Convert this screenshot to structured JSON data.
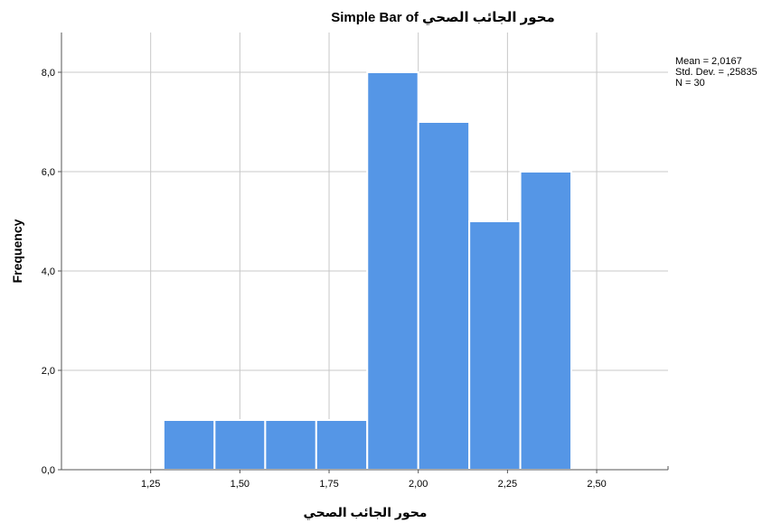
{
  "chart_data": {
    "type": "bar",
    "title": "Simple Bar of محور الجائب الصحي",
    "xlabel": "محور الجائب الصحي",
    "ylabel": "Frequency",
    "xlim": [
      1.0,
      2.7
    ],
    "ylim": [
      0,
      8.8
    ],
    "xticks": [
      1.25,
      1.5,
      1.75,
      2.0,
      2.25,
      2.5
    ],
    "xtick_labels": [
      "1,25",
      "1,50",
      "1,75",
      "2,00",
      "2,25",
      "2,50"
    ],
    "yticks": [
      0,
      2,
      4,
      6,
      8
    ],
    "ytick_labels": [
      "0,0",
      "2,0",
      "4,0",
      "6,0",
      "8,0"
    ],
    "bins": [
      {
        "x0": 1.286,
        "x1": 1.429,
        "value": 1
      },
      {
        "x0": 1.429,
        "x1": 1.571,
        "value": 1
      },
      {
        "x0": 1.571,
        "x1": 1.714,
        "value": 1
      },
      {
        "x0": 1.714,
        "x1": 1.857,
        "value": 1
      },
      {
        "x0": 1.857,
        "x1": 2.0,
        "value": 8
      },
      {
        "x0": 2.0,
        "x1": 2.143,
        "value": 7
      },
      {
        "x0": 2.143,
        "x1": 2.286,
        "value": 5
      },
      {
        "x0": 2.286,
        "x1": 2.429,
        "value": 6
      }
    ],
    "grid": true,
    "legend": "none",
    "bar_color": "#5596e6",
    "stats": [
      "Mean = 2,0167",
      "Std. Dev. = ,25835",
      "N = 30"
    ]
  }
}
